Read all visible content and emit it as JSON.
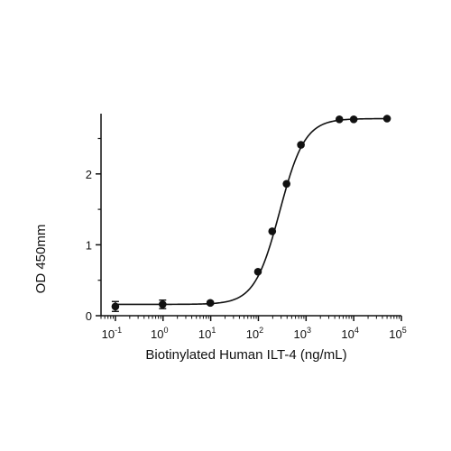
{
  "chart_data": {
    "type": "scatter",
    "title": "",
    "xlabel": "Biotinylated Human ILT-4 (ng/mL)",
    "ylabel": "OD 450mm",
    "xscale": "log",
    "xlim": [
      0.05,
      100000
    ],
    "ylim": [
      0,
      2.85
    ],
    "grid": false,
    "legend": "none",
    "x_ticks": [
      {
        "value": 0.1,
        "base": "10",
        "exp": "-1"
      },
      {
        "value": 1,
        "base": "10",
        "exp": "0"
      },
      {
        "value": 10,
        "base": "10",
        "exp": "1"
      },
      {
        "value": 100,
        "base": "10",
        "exp": "2"
      },
      {
        "value": 1000,
        "base": "10",
        "exp": "3"
      },
      {
        "value": 10000,
        "base": "10",
        "exp": "4"
      },
      {
        "value": 100000,
        "base": "10",
        "exp": "5"
      }
    ],
    "y_ticks": [
      {
        "value": 0,
        "label": "0"
      },
      {
        "value": 1,
        "label": "1"
      },
      {
        "value": 2,
        "label": "2"
      }
    ],
    "series": [
      {
        "points": [
          {
            "x": 0.1,
            "y": 0.13,
            "err": 0.07
          },
          {
            "x": 0.98,
            "y": 0.16,
            "err": 0.06
          },
          {
            "x": 9.8,
            "y": 0.18,
            "err": 0.02
          },
          {
            "x": 98,
            "y": 0.62
          },
          {
            "x": 195,
            "y": 1.19
          },
          {
            "x": 390,
            "y": 1.86
          },
          {
            "x": 781,
            "y": 2.41
          },
          {
            "x": 5000,
            "y": 2.77
          },
          {
            "x": 10000,
            "y": 2.77
          },
          {
            "x": 50000,
            "y": 2.78
          }
        ],
        "fit": {
          "model": "4PL",
          "bottom": 0.16,
          "top": 2.78,
          "ec50": 280,
          "hill": 1.65
        }
      }
    ],
    "colors": {
      "marker": "#111111",
      "line": "#111111",
      "axis": "#111111"
    }
  }
}
